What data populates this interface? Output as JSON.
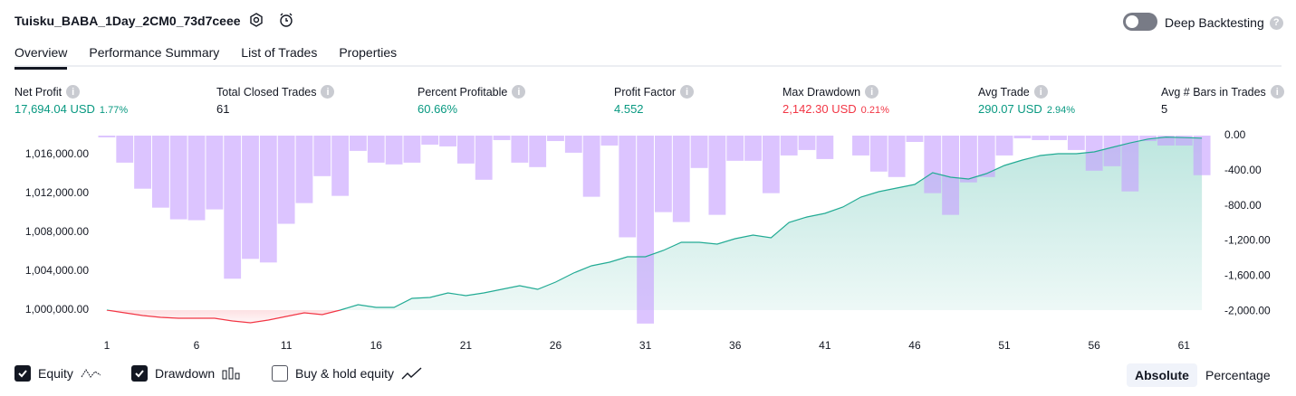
{
  "header": {
    "title": "Tuisku_BABA_1Day_2CM0_73d7ceee",
    "toggle_label": "Deep Backtesting"
  },
  "tabs": [
    "Overview",
    "Performance Summary",
    "List of Trades",
    "Properties"
  ],
  "metrics": [
    {
      "label": "Net Profit",
      "value": "17,694.04 USD",
      "percent": "1.77%"
    },
    {
      "label": "Total Closed Trades",
      "value": "61"
    },
    {
      "label": "Percent Profitable",
      "value": "60.66%"
    },
    {
      "label": "Profit Factor",
      "value": "4.552"
    },
    {
      "label": "Max Drawdown",
      "value": "2,142.30 USD",
      "percent": "0.21%"
    },
    {
      "label": "Avg Trade",
      "value": "290.07 USD",
      "percent": "2.94%"
    },
    {
      "label": "Avg # Bars in Trades",
      "value": "5"
    }
  ],
  "chart_data": {
    "type": "combo",
    "x": [
      1,
      2,
      3,
      4,
      5,
      6,
      7,
      8,
      9,
      10,
      11,
      12,
      13,
      14,
      15,
      16,
      17,
      18,
      19,
      20,
      21,
      22,
      23,
      24,
      25,
      26,
      27,
      28,
      29,
      30,
      31,
      32,
      33,
      34,
      35,
      36,
      37,
      38,
      39,
      40,
      41,
      42,
      43,
      44,
      45,
      46,
      47,
      48,
      49,
      50,
      51,
      52,
      53,
      54,
      55,
      56,
      57,
      58,
      59,
      60,
      61,
      62
    ],
    "xlim": [
      0.5,
      62.7
    ],
    "xticks": [
      1,
      6,
      11,
      16,
      21,
      26,
      31,
      36,
      41,
      46,
      51,
      56,
      61
    ],
    "ylim": [
      998419,
      1017953
    ],
    "yticks": [
      {
        "value": 1000000,
        "label": "1,000,000.00"
      },
      {
        "value": 1004000,
        "label": "1,004,000.00"
      },
      {
        "value": 1008000,
        "label": "1,008,000.00"
      },
      {
        "value": 1012000,
        "label": "1,012,000.00"
      },
      {
        "value": 1016000,
        "label": "1,016,000.00"
      }
    ],
    "baseline": 1000000,
    "y2lim": [
      -2164,
      0
    ],
    "y2ticks": [
      {
        "value": 0,
        "label": "0.00"
      },
      {
        "value": -400,
        "label": "-400.00"
      },
      {
        "value": -800,
        "label": "-800.00"
      },
      {
        "value": -1200,
        "label": "-1,200.00"
      },
      {
        "value": -1600,
        "label": "-1,600.00"
      },
      {
        "value": -2000,
        "label": "-2,000.00"
      }
    ],
    "series": [
      {
        "name": "Equity",
        "type": "line",
        "color": "#22ab94",
        "negative_color": "#f23645",
        "values": [
          1000000,
          999721,
          999442,
          999256,
          999163,
          999163,
          999163,
          998884,
          998698,
          998977,
          999349,
          999721,
          999535,
          1000000,
          1000558,
          1000279,
          1000279,
          1001209,
          1001302,
          1001767,
          1001488,
          1001767,
          1002140,
          1002512,
          1002140,
          1002884,
          1003814,
          1004558,
          1004930,
          1005488,
          1005488,
          1006140,
          1006977,
          1006977,
          1006791,
          1007349,
          1007721,
          1007442,
          1009023,
          1009581,
          1009953,
          1010605,
          1011628,
          1012186,
          1012558,
          1012930,
          1014140,
          1013674,
          1013488,
          1014047,
          1014884,
          1015442,
          1015907,
          1016093,
          1016093,
          1016279,
          1016744,
          1017200,
          1017600,
          1017800,
          1017750,
          1017694
        ]
      },
      {
        "name": "Drawdown",
        "type": "bar",
        "axis": "y2",
        "color": "#c59cff",
        "values": [
          -20,
          -308,
          -605,
          -821,
          -954,
          -964,
          -841,
          -1631,
          -1405,
          -1446,
          -1005,
          -769,
          -462,
          -687,
          -174,
          -308,
          -328,
          -308,
          -103,
          -123,
          -318,
          -503,
          -51,
          -308,
          -359,
          -62,
          -195,
          -697,
          -113,
          -1159,
          -2142.3,
          -872,
          -985,
          -369,
          -903,
          -287,
          -287,
          -656,
          -226,
          -164,
          -267,
          0,
          -226,
          -410,
          -472,
          -72,
          -656,
          -903,
          -533,
          -472,
          -226,
          -31,
          -51,
          -51,
          -164,
          -400,
          -349,
          -636,
          -62,
          -113,
          -113,
          -451
        ]
      }
    ]
  },
  "legend_extra": "Buy & hold equity",
  "mode_buttons": [
    "Absolute",
    "Percentage"
  ]
}
